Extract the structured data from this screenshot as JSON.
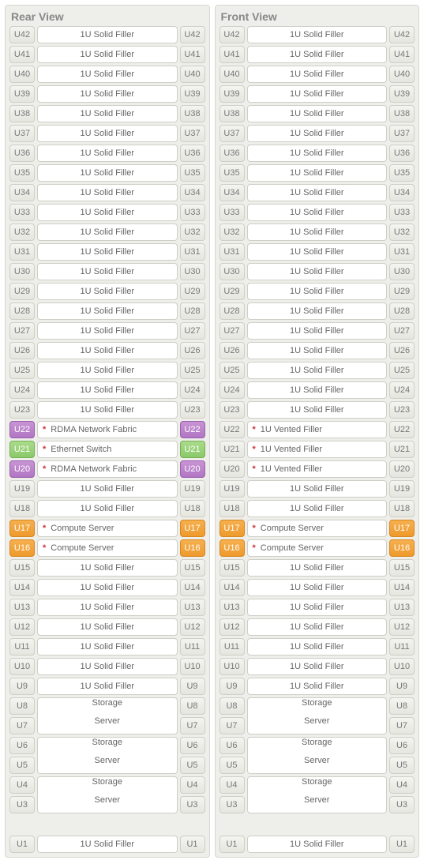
{
  "ulabel_colors": {
    "default": {
      "bg_top": "#f4f4f0",
      "bg_bot": "#e6e6e0",
      "border": "#cfcfc7",
      "text": "#777777"
    },
    "purple": {
      "bg_top": "#c894d4",
      "bg_bot": "#b176c4",
      "border": "#9a5fae",
      "text": "#ffffff"
    },
    "green": {
      "bg_top": "#aadb8a",
      "bg_bot": "#8bc96a",
      "border": "#76b154",
      "text": "#ffffff"
    },
    "orange": {
      "bg_top": "#f5b04f",
      "bg_bot": "#ee9a2c",
      "border": "#d9861d",
      "text": "#ffffff"
    }
  },
  "panel_bg": "#eeeeea",
  "panel_border": "#d8d8d2",
  "slot_bg": "#ffffff",
  "slot_border": "#cfcfc7",
  "star_color": "#cc3333",
  "views": [
    {
      "title": "Rear View",
      "units": [
        {
          "u": 42,
          "label": "1U Solid Filler",
          "span": 1,
          "color": "default",
          "star": false
        },
        {
          "u": 41,
          "label": "1U Solid Filler",
          "span": 1,
          "color": "default",
          "star": false
        },
        {
          "u": 40,
          "label": "1U Solid Filler",
          "span": 1,
          "color": "default",
          "star": false
        },
        {
          "u": 39,
          "label": "1U Solid Filler",
          "span": 1,
          "color": "default",
          "star": false
        },
        {
          "u": 38,
          "label": "1U Solid Filler",
          "span": 1,
          "color": "default",
          "star": false
        },
        {
          "u": 37,
          "label": "1U Solid Filler",
          "span": 1,
          "color": "default",
          "star": false
        },
        {
          "u": 36,
          "label": "1U Solid Filler",
          "span": 1,
          "color": "default",
          "star": false
        },
        {
          "u": 35,
          "label": "1U Solid Filler",
          "span": 1,
          "color": "default",
          "star": false
        },
        {
          "u": 34,
          "label": "1U Solid Filler",
          "span": 1,
          "color": "default",
          "star": false
        },
        {
          "u": 33,
          "label": "1U Solid Filler",
          "span": 1,
          "color": "default",
          "star": false
        },
        {
          "u": 32,
          "label": "1U Solid Filler",
          "span": 1,
          "color": "default",
          "star": false
        },
        {
          "u": 31,
          "label": "1U Solid Filler",
          "span": 1,
          "color": "default",
          "star": false
        },
        {
          "u": 30,
          "label": "1U Solid Filler",
          "span": 1,
          "color": "default",
          "star": false
        },
        {
          "u": 29,
          "label": "1U Solid Filler",
          "span": 1,
          "color": "default",
          "star": false
        },
        {
          "u": 28,
          "label": "1U Solid Filler",
          "span": 1,
          "color": "default",
          "star": false
        },
        {
          "u": 27,
          "label": "1U Solid Filler",
          "span": 1,
          "color": "default",
          "star": false
        },
        {
          "u": 26,
          "label": "1U Solid Filler",
          "span": 1,
          "color": "default",
          "star": false
        },
        {
          "u": 25,
          "label": "1U Solid Filler",
          "span": 1,
          "color": "default",
          "star": false
        },
        {
          "u": 24,
          "label": "1U Solid Filler",
          "span": 1,
          "color": "default",
          "star": false
        },
        {
          "u": 23,
          "label": "1U Solid Filler",
          "span": 1,
          "color": "default",
          "star": false
        },
        {
          "u": 22,
          "label": "RDMA Network Fabric",
          "span": 1,
          "color": "purple",
          "star": true,
          "left": true
        },
        {
          "u": 21,
          "label": "Ethernet Switch",
          "span": 1,
          "color": "green",
          "star": true,
          "left": true
        },
        {
          "u": 20,
          "label": "RDMA Network Fabric",
          "span": 1,
          "color": "purple",
          "star": true,
          "left": true
        },
        {
          "u": 19,
          "label": "1U Solid Filler",
          "span": 1,
          "color": "default",
          "star": false
        },
        {
          "u": 18,
          "label": "1U Solid Filler",
          "span": 1,
          "color": "default",
          "star": false
        },
        {
          "u": 17,
          "label": "Compute Server",
          "span": 1,
          "color": "orange",
          "star": true,
          "left": true
        },
        {
          "u": 16,
          "label": "Compute Server",
          "span": 1,
          "color": "orange",
          "star": true,
          "left": true
        },
        {
          "u": 15,
          "label": "1U Solid Filler",
          "span": 1,
          "color": "default",
          "star": false
        },
        {
          "u": 14,
          "label": "1U Solid Filler",
          "span": 1,
          "color": "default",
          "star": false
        },
        {
          "u": 13,
          "label": "1U Solid Filler",
          "span": 1,
          "color": "default",
          "star": false
        },
        {
          "u": 12,
          "label": "1U Solid Filler",
          "span": 1,
          "color": "default",
          "star": false
        },
        {
          "u": 11,
          "label": "1U Solid Filler",
          "span": 1,
          "color": "default",
          "star": false
        },
        {
          "u": 10,
          "label": "1U Solid Filler",
          "span": 1,
          "color": "default",
          "star": false
        },
        {
          "u": 9,
          "label": "1U Solid Filler",
          "span": 1,
          "color": "default",
          "star": false
        },
        {
          "u": 8,
          "label": "1U Solid Filler",
          "span": 1,
          "color": "default",
          "star": false
        },
        {
          "u": 7,
          "label": "Storage\nServer",
          "span": 2,
          "color": "default",
          "star": false
        },
        {
          "u": 5,
          "label": "Storage\nServer",
          "span": 2,
          "color": "default",
          "star": false
        },
        {
          "u": 3,
          "label": "Storage\nServer",
          "span": 2,
          "color": "default",
          "star": false
        },
        {
          "u": 1,
          "label": "1U Solid Filler",
          "span": 1,
          "color": "default",
          "star": false
        }
      ]
    },
    {
      "title": "Front View",
      "units": [
        {
          "u": 42,
          "label": "1U Solid Filler",
          "span": 1,
          "color": "default",
          "star": false
        },
        {
          "u": 41,
          "label": "1U Solid Filler",
          "span": 1,
          "color": "default",
          "star": false
        },
        {
          "u": 40,
          "label": "1U Solid Filler",
          "span": 1,
          "color": "default",
          "star": false
        },
        {
          "u": 39,
          "label": "1U Solid Filler",
          "span": 1,
          "color": "default",
          "star": false
        },
        {
          "u": 38,
          "label": "1U Solid Filler",
          "span": 1,
          "color": "default",
          "star": false
        },
        {
          "u": 37,
          "label": "1U Solid Filler",
          "span": 1,
          "color": "default",
          "star": false
        },
        {
          "u": 36,
          "label": "1U Solid Filler",
          "span": 1,
          "color": "default",
          "star": false
        },
        {
          "u": 35,
          "label": "1U Solid Filler",
          "span": 1,
          "color": "default",
          "star": false
        },
        {
          "u": 34,
          "label": "1U Solid Filler",
          "span": 1,
          "color": "default",
          "star": false
        },
        {
          "u": 33,
          "label": "1U Solid Filler",
          "span": 1,
          "color": "default",
          "star": false
        },
        {
          "u": 32,
          "label": "1U Solid Filler",
          "span": 1,
          "color": "default",
          "star": false
        },
        {
          "u": 31,
          "label": "1U Solid Filler",
          "span": 1,
          "color": "default",
          "star": false
        },
        {
          "u": 30,
          "label": "1U Solid Filler",
          "span": 1,
          "color": "default",
          "star": false
        },
        {
          "u": 29,
          "label": "1U Solid Filler",
          "span": 1,
          "color": "default",
          "star": false
        },
        {
          "u": 28,
          "label": "1U Solid Filler",
          "span": 1,
          "color": "default",
          "star": false
        },
        {
          "u": 27,
          "label": "1U Solid Filler",
          "span": 1,
          "color": "default",
          "star": false
        },
        {
          "u": 26,
          "label": "1U Solid Filler",
          "span": 1,
          "color": "default",
          "star": false
        },
        {
          "u": 25,
          "label": "1U Solid Filler",
          "span": 1,
          "color": "default",
          "star": false
        },
        {
          "u": 24,
          "label": "1U Solid Filler",
          "span": 1,
          "color": "default",
          "star": false
        },
        {
          "u": 23,
          "label": "1U Solid Filler",
          "span": 1,
          "color": "default",
          "star": false
        },
        {
          "u": 22,
          "label": "1U Vented Filler",
          "span": 1,
          "color": "default",
          "star": true,
          "left": true
        },
        {
          "u": 21,
          "label": "1U Vented Filler",
          "span": 1,
          "color": "default",
          "star": true,
          "left": true
        },
        {
          "u": 20,
          "label": "1U Vented Filler",
          "span": 1,
          "color": "default",
          "star": true,
          "left": true
        },
        {
          "u": 19,
          "label": "1U Solid Filler",
          "span": 1,
          "color": "default",
          "star": false
        },
        {
          "u": 18,
          "label": "1U Solid Filler",
          "span": 1,
          "color": "default",
          "star": false
        },
        {
          "u": 17,
          "label": "Compute Server",
          "span": 1,
          "color": "orange",
          "star": true,
          "left": true
        },
        {
          "u": 16,
          "label": "Compute Server",
          "span": 1,
          "color": "orange",
          "star": true,
          "left": true
        },
        {
          "u": 15,
          "label": "1U Solid Filler",
          "span": 1,
          "color": "default",
          "star": false
        },
        {
          "u": 14,
          "label": "1U Solid Filler",
          "span": 1,
          "color": "default",
          "star": false
        },
        {
          "u": 13,
          "label": "1U Solid Filler",
          "span": 1,
          "color": "default",
          "star": false
        },
        {
          "u": 12,
          "label": "1U Solid Filler",
          "span": 1,
          "color": "default",
          "star": false
        },
        {
          "u": 11,
          "label": "1U Solid Filler",
          "span": 1,
          "color": "default",
          "star": false
        },
        {
          "u": 10,
          "label": "1U Solid Filler",
          "span": 1,
          "color": "default",
          "star": false
        },
        {
          "u": 9,
          "label": "1U Solid Filler",
          "span": 1,
          "color": "default",
          "star": false
        },
        {
          "u": 8,
          "label": "1U Solid Filler",
          "span": 1,
          "color": "default",
          "star": false
        },
        {
          "u": 7,
          "label": "Storage\nServer",
          "span": 2,
          "color": "default",
          "star": false
        },
        {
          "u": 5,
          "label": "Storage\nServer",
          "span": 2,
          "color": "default",
          "star": false
        },
        {
          "u": 3,
          "label": "Storage\nServer",
          "span": 2,
          "color": "default",
          "star": false
        },
        {
          "u": 1,
          "label": "1U Solid Filler",
          "span": 1,
          "color": "default",
          "star": false
        }
      ]
    }
  ]
}
